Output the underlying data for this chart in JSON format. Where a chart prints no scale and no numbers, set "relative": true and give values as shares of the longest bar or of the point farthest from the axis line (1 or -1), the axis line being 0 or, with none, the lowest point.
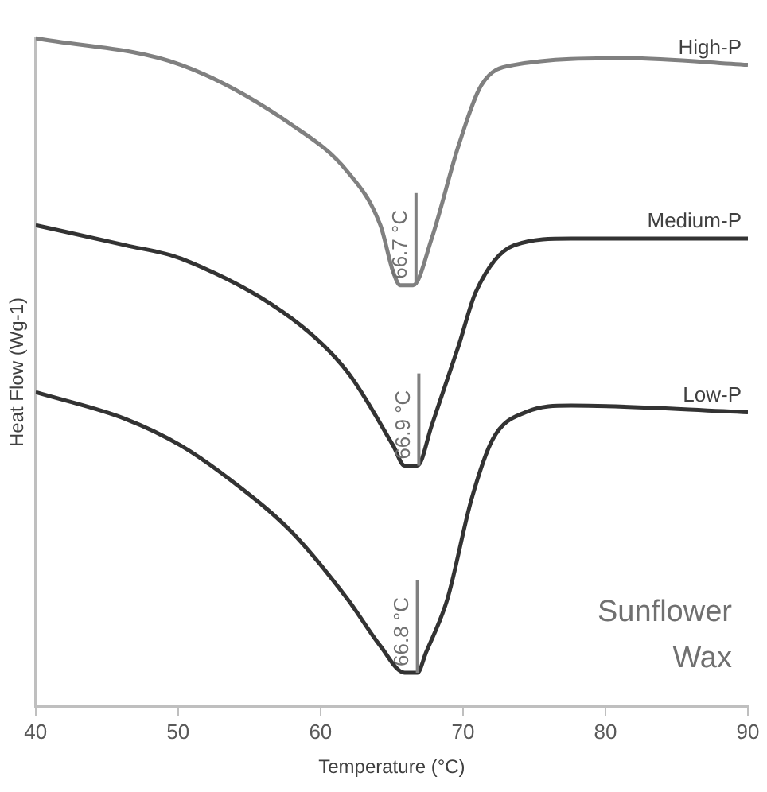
{
  "chart_data": {
    "type": "line",
    "relative": true,
    "xlabel": "Temperature (°C)",
    "ylabel": "Heat Flow (Wg-1)",
    "xlim": [
      40,
      90
    ],
    "xticks": [
      40,
      50,
      60,
      70,
      80,
      90
    ],
    "grid": false,
    "legend": false,
    "marker": "none",
    "line_style": "solid",
    "series": [
      {
        "name": "High-P",
        "color": "#808080",
        "x": [
          40,
          50.2,
          58.0,
          61.9,
          64.2,
          65.1,
          65.6,
          66.5,
          67.8,
          69.7,
          71.3,
          73.6,
          81.5,
          90
        ],
        "values": [
          1.0,
          0.96,
          0.87,
          0.8,
          0.72,
          0.65,
          0.63,
          0.63,
          0.7,
          0.84,
          0.93,
          0.96,
          0.97,
          0.96
        ]
      },
      {
        "name": "Medium-P",
        "color": "#333333",
        "x": [
          40,
          46.3,
          50.2,
          58.0,
          61.9,
          65.1,
          65.9,
          66.8,
          67.8,
          69.7,
          70.9,
          73.6,
          77.6,
          90
        ],
        "values": [
          0.72,
          0.69,
          0.67,
          0.58,
          0.5,
          0.39,
          0.36,
          0.36,
          0.42,
          0.54,
          0.62,
          0.69,
          0.7,
          0.7
        ]
      },
      {
        "name": "Low-P",
        "color": "#333333",
        "x": [
          40,
          46.3,
          50.2,
          54.2,
          58.0,
          61.9,
          64.2,
          65.9,
          66.8,
          67.4,
          68.9,
          70.6,
          72.1,
          74.4,
          77.6,
          90
        ],
        "values": [
          0.47,
          0.43,
          0.39,
          0.33,
          0.26,
          0.16,
          0.09,
          0.05,
          0.05,
          0.08,
          0.16,
          0.31,
          0.4,
          0.44,
          0.45,
          0.44
        ]
      }
    ],
    "annotations": [
      {
        "text": "66.7 °C",
        "x": 66.7,
        "y": 0.63
      },
      {
        "text": "66.9 °C",
        "x": 66.9,
        "y": 0.36
      },
      {
        "text": "66.8 °C",
        "x": 66.8,
        "y": 0.05
      },
      "Sunflower Wax"
    ]
  }
}
